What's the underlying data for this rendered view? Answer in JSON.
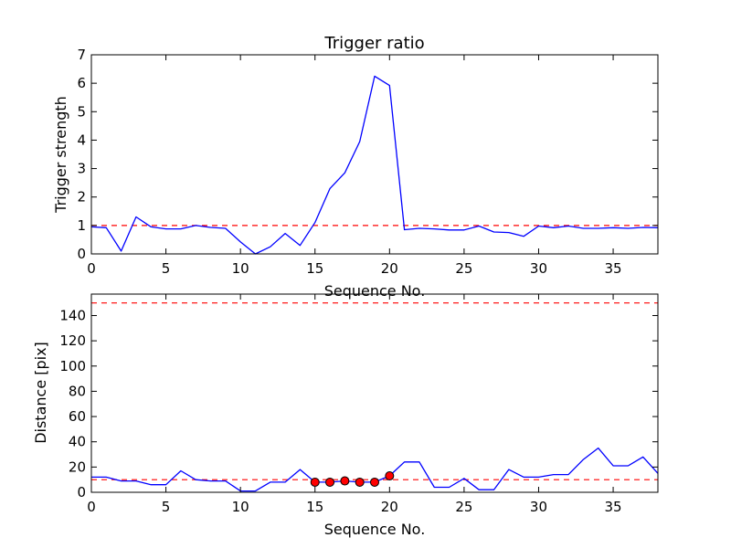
{
  "chart_data": [
    {
      "type": "line",
      "title": "Trigger ratio",
      "xlabel": "Sequence No.",
      "ylabel": "Trigger strength",
      "xlim": [
        0,
        38
      ],
      "ylim": [
        0,
        7
      ],
      "xticks": [
        "0",
        "5",
        "10",
        "15",
        "20",
        "25",
        "30",
        "35"
      ],
      "yticks": [
        "0",
        "1",
        "2",
        "3",
        "4",
        "5",
        "6",
        "7"
      ],
      "grid": false,
      "colors": {
        "line": "#0000ff",
        "threshold": "#ff0000"
      },
      "threshold": 1,
      "series": [
        {
          "x": [
            0,
            1,
            2,
            3,
            4,
            5,
            6,
            7,
            8,
            9,
            10,
            11,
            12,
            13,
            14,
            15,
            16,
            17,
            18,
            19,
            20,
            21,
            22,
            23,
            24,
            25,
            26,
            27,
            28,
            29,
            30,
            31,
            32,
            33,
            34,
            35,
            36,
            37,
            38
          ],
          "values": [
            0.95,
            0.92,
            0.1,
            1.3,
            0.95,
            0.88,
            0.88,
            1.0,
            0.93,
            0.9,
            0.42,
            0.0,
            0.25,
            0.72,
            0.3,
            1.1,
            2.3,
            2.85,
            3.95,
            6.25,
            5.92,
            0.85,
            0.9,
            0.88,
            0.84,
            0.84,
            0.98,
            0.77,
            0.75,
            0.62,
            0.98,
            0.92,
            0.98,
            0.9,
            0.9,
            0.92,
            0.9,
            0.93,
            0.92
          ]
        }
      ]
    },
    {
      "type": "line",
      "xlabel": "Sequence No.",
      "ylabel": "Distance [pix]",
      "xlim": [
        0,
        38
      ],
      "ylim": [
        0,
        157
      ],
      "xticks": [
        "0",
        "5",
        "10",
        "15",
        "20",
        "25",
        "30",
        "35"
      ],
      "yticks": [
        "0",
        "20",
        "40",
        "60",
        "80",
        "100",
        "120",
        "140"
      ],
      "grid": false,
      "colors": {
        "line": "#0000ff",
        "threshold": "#ff0000",
        "marker": "#ff0000"
      },
      "thresholds": [
        150,
        10
      ],
      "series": [
        {
          "x": [
            0,
            1,
            2,
            3,
            4,
            5,
            6,
            7,
            8,
            9,
            10,
            11,
            12,
            13,
            14,
            15,
            16,
            17,
            18,
            19,
            20,
            21,
            22,
            23,
            24,
            25,
            26,
            27,
            28,
            29,
            30,
            31,
            32,
            33,
            34,
            35,
            36,
            37,
            38
          ],
          "values": [
            12,
            12,
            9,
            9,
            6,
            6,
            17,
            10,
            9,
            9,
            1,
            1,
            8,
            8,
            18,
            8,
            8,
            9,
            8,
            8,
            13,
            24,
            24,
            4,
            4,
            11,
            2,
            2,
            18,
            12,
            12,
            14,
            14,
            26,
            35,
            21,
            21,
            28,
            15
          ]
        }
      ],
      "markers": {
        "x": [
          15,
          16,
          17,
          18,
          19,
          20
        ],
        "values": [
          8,
          8,
          9,
          8,
          8,
          13
        ]
      }
    }
  ]
}
